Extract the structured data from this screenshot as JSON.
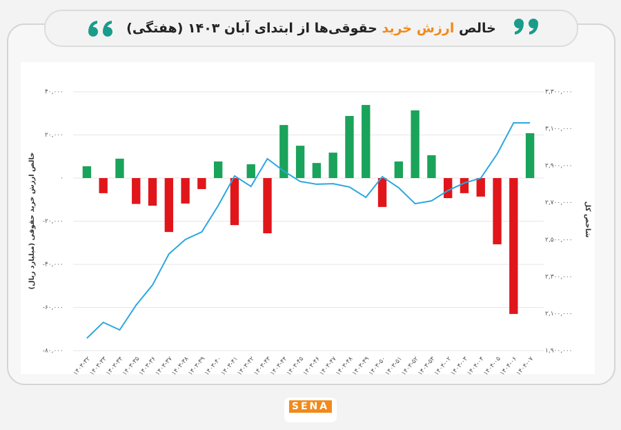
{
  "chart_data": {
    "type": "bar-line",
    "title_parts": [
      "خالص",
      "ارزش خرید",
      "حقوقی‌ها از ابتدای آبان ۱۴۰۳ (هفتگی)"
    ],
    "y_label": "خالص ارزش خرید حقوقی (میلیارد ریال)",
    "y2_label": "شاخص کل",
    "brand": "SENA",
    "categories": [
      "۱۴۰۳-۳۲",
      "۱۴۰۳-۳۳",
      "۱۴۰۳-۳۴",
      "۱۴۰۳-۳۵",
      "۱۴۰۳-۳۶",
      "۱۴۰۳-۳۷",
      "۱۴۰۳-۳۸",
      "۱۴۰۳-۳۹",
      "۱۴۰۳-۴۰",
      "۱۴۰۳-۴۱",
      "۱۴۰۳-۴۲",
      "۱۴۰۳-۴۳",
      "۱۴۰۳-۴۴",
      "۱۴۰۳-۴۵",
      "۱۴۰۳-۴۶",
      "۱۴۰۳-۴۷",
      "۱۴۰۳-۴۸",
      "۱۴۰۳-۴۹",
      "۱۴۰۳-۵۰",
      "۱۴۰۳-۵۱",
      "۱۴۰۳-۵۲",
      "۱۴۰۳-۵۳",
      "۱۴۰۴-۰۲",
      "۱۴۰۴-۰۳",
      "۱۴۰۴-۰۴",
      "۱۴۰۴-۰۵",
      "۱۴۰۴-۰۶",
      "۱۴۰۴-۰۷"
    ],
    "series": [
      {
        "type": "bar",
        "color_positive": "#1aa35a",
        "color_negative": "#e0161b",
        "values": [
          5500,
          -7000,
          9000,
          -12000,
          -12800,
          -25000,
          -11800,
          -5100,
          7700,
          -21800,
          6400,
          -25600,
          24600,
          15000,
          7000,
          11800,
          28800,
          33900,
          -13400,
          7700,
          31400,
          10600,
          -9300,
          -7000,
          -8600,
          -30700,
          -63000,
          20800
        ]
      },
      {
        "type": "line",
        "axis": "y2",
        "color": "#2aa7df",
        "values": [
          1967000,
          2053000,
          2012000,
          2146000,
          2255000,
          2423000,
          2501000,
          2542000,
          2684000,
          2845000,
          2788000,
          2938000,
          2871000,
          2815000,
          2800000,
          2803000,
          2785000,
          2729000,
          2841000,
          2781000,
          2695000,
          2710000,
          2766000,
          2807000,
          2833000,
          2964000,
          3132000,
          3132000
        ]
      }
    ],
    "ylim": [
      -80000,
      40000
    ],
    "yticks": [
      {
        "value": 40000,
        "label": "۴۰,۰۰۰"
      },
      {
        "value": 20000,
        "label": "۲۰,۰۰۰"
      },
      {
        "value": 0,
        "label": "۰"
      },
      {
        "value": -20000,
        "label": "-۲۰,۰۰۰"
      },
      {
        "value": -40000,
        "label": "-۴۰,۰۰۰"
      },
      {
        "value": -60000,
        "label": "-۶۰,۰۰۰"
      },
      {
        "value": -80000,
        "label": "-۸۰,۰۰۰"
      }
    ],
    "y2lim": [
      1900000,
      3300000
    ],
    "y2ticks": [
      {
        "value": 3300000,
        "label": "۳,۳۰۰,۰۰۰"
      },
      {
        "value": 3100000,
        "label": "۳,۱۰۰,۰۰۰"
      },
      {
        "value": 2900000,
        "label": "۲,۹۰۰,۰۰۰"
      },
      {
        "value": 2700000,
        "label": "۲,۷۰۰,۰۰۰"
      },
      {
        "value": 2500000,
        "label": "۲,۵۰۰,۰۰۰"
      },
      {
        "value": 2300000,
        "label": "۲,۳۰۰,۰۰۰"
      },
      {
        "value": 2100000,
        "label": "۲,۱۰۰,۰۰۰"
      },
      {
        "value": 1900000,
        "label": "۱,۹۰۰,۰۰۰"
      }
    ],
    "grid": true
  }
}
